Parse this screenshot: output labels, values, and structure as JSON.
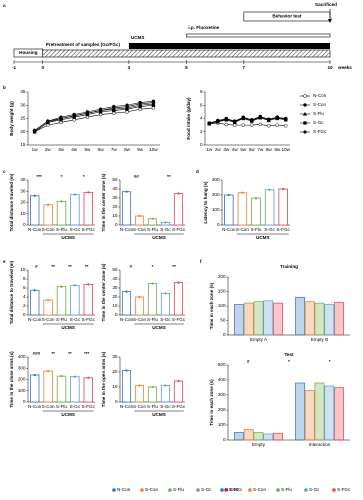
{
  "panel_labels": [
    "a",
    "b",
    "c",
    "d",
    "e",
    "f"
  ],
  "timeline": {
    "ticks": [
      -1,
      0,
      3,
      5,
      7,
      10
    ],
    "unit": "weeks",
    "phases": [
      {
        "label": "Housing",
        "start": -1,
        "end": 0,
        "style": "box"
      },
      {
        "label": "Pretreatment of samples (Gc/FGc)",
        "start": 0,
        "end": 10,
        "style": "hatch"
      },
      {
        "label": "UCMS",
        "start": 3,
        "end": 10,
        "style": "solid"
      },
      {
        "label": "i.p. Fluoxetine",
        "start": 5,
        "end": 10,
        "style": "line"
      },
      {
        "label": "Behavior test",
        "start": 7,
        "end": 10,
        "style": "box-label"
      }
    ],
    "endpoint": {
      "label": "Sacrificed",
      "at": 10
    }
  },
  "chart_data": [
    {
      "type": "line",
      "ylabel": "Body weight (g)",
      "categories": [
        "1w",
        "2w",
        "3w",
        "4w",
        "5w",
        "6w",
        "7w",
        "8w",
        "9w",
        "10w"
      ],
      "ylim": [
        15,
        35
      ],
      "yticks": [
        15,
        20,
        25,
        30,
        35
      ],
      "series": [
        {
          "name": "N-Con",
          "color": "#000000",
          "marker": "circle-open",
          "values": [
            20,
            22.5,
            23.5,
            24.5,
            25.5,
            26.5,
            27,
            27.5,
            28.5,
            29
          ]
        },
        {
          "name": "S-Con",
          "color": "#000000",
          "marker": "circle",
          "values": [
            20.5,
            24,
            25.5,
            26.5,
            27.5,
            28.5,
            29.5,
            30,
            31,
            31.5
          ]
        },
        {
          "name": "S-Flu",
          "color": "#000000",
          "marker": "triangle",
          "values": [
            20,
            23.5,
            25,
            26,
            27,
            28,
            28.5,
            29,
            30,
            30.5
          ]
        },
        {
          "name": "S-Gc",
          "color": "#000000",
          "marker": "square",
          "values": [
            20,
            23.5,
            24.5,
            25.5,
            26.5,
            27.5,
            28,
            28.5,
            29.5,
            30
          ]
        },
        {
          "name": "S-FGc",
          "color": "#000000",
          "marker": "diamond",
          "values": [
            20.5,
            24,
            25,
            26,
            27,
            28,
            29,
            29.5,
            30.5,
            31
          ]
        }
      ]
    },
    {
      "type": "line",
      "ylabel": "Food intake (g/day)",
      "categories": [
        "1w",
        "2w",
        "3w",
        "4w",
        "5w",
        "6w",
        "7w",
        "8w",
        "9w",
        "10w"
      ],
      "ylim": [
        0,
        8
      ],
      "yticks": [
        0,
        2,
        4,
        6,
        8
      ],
      "legend": "right",
      "series": [
        {
          "name": "N-Con",
          "color": "#000000",
          "marker": "circle-open",
          "values": [
            3.2,
            3.3,
            3.1,
            3.0,
            3.0,
            3.0,
            3.1,
            2.9,
            3.0,
            2.9
          ]
        },
        {
          "name": "S-Con",
          "color": "#000000",
          "marker": "circle",
          "values": [
            3.3,
            3.7,
            4.0,
            3.6,
            4.2,
            3.8,
            4.3,
            3.9,
            4.2,
            4.0
          ]
        },
        {
          "name": "S-Flu",
          "color": "#000000",
          "marker": "triangle",
          "values": [
            3.2,
            3.5,
            3.8,
            3.4,
            4.0,
            3.6,
            4.1,
            3.7,
            4.0,
            3.8
          ]
        },
        {
          "name": "S-Gc",
          "color": "#000000",
          "marker": "square",
          "values": [
            3.3,
            3.6,
            3.9,
            3.5,
            4.1,
            3.7,
            4.2,
            3.8,
            4.1,
            3.9
          ]
        },
        {
          "name": "S-FGc",
          "color": "#000000",
          "marker": "diamond",
          "values": [
            3.2,
            3.6,
            3.9,
            3.6,
            4.1,
            3.8,
            4.2,
            3.8,
            4.2,
            3.9
          ]
        }
      ]
    },
    {
      "type": "bar",
      "ylabel": "Total distance traveled (m)",
      "categories": [
        "N-Con",
        "S-Con",
        "S-Flu",
        "S-Gc",
        "S-FGc"
      ],
      "xlabel": "UCMS",
      "values": [
        26,
        18,
        21,
        27,
        29
      ],
      "colors": [
        "#2e75b6",
        "#ed7d31",
        "#70ad47",
        "#5b9bd5",
        "#e0474c"
      ],
      "ylim": [
        0,
        40
      ],
      "yticks": [
        0,
        10,
        20,
        30,
        40
      ],
      "annotations": [
        "***",
        "*",
        "*"
      ]
    },
    {
      "type": "bar",
      "ylabel": "Time in the center zone (s)",
      "categories": [
        "N-Con",
        "S-Con",
        "S-Flu",
        "S-Gc",
        "S-FGc"
      ],
      "xlabel": "UCMS",
      "values": [
        37,
        10,
        7,
        3,
        35
      ],
      "colors": [
        "#2e75b6",
        "#ed7d31",
        "#70ad47",
        "#5b9bd5",
        "#e0474c"
      ],
      "ylim": [
        0,
        50
      ],
      "yticks": [
        0,
        10,
        20,
        30,
        40,
        50
      ],
      "annotations": [
        "##",
        "**"
      ]
    },
    {
      "type": "bar",
      "ylabel": "Latency to hang (s)",
      "categories": [
        "N-Con",
        "S-Con",
        "S-Flu",
        "S-Gc",
        "S-FGc"
      ],
      "xlabel": "UCMS",
      "values": [
        200,
        215,
        180,
        235,
        240
      ],
      "colors": [
        "#2e75b6",
        "#ed7d31",
        "#70ad47",
        "#5b9bd5",
        "#e0474c"
      ],
      "ylim": [
        0,
        300
      ],
      "yticks": [
        0,
        100,
        200,
        300
      ]
    },
    {
      "type": "bar",
      "ylabel": "Total distance to traveled (m)",
      "categories": [
        "N-Con",
        "S-Con",
        "S-Flu",
        "S-Gc",
        "S-FGc"
      ],
      "xlabel": "UCMS",
      "values": [
        5.5,
        3.3,
        6.3,
        6.6,
        6.8
      ],
      "colors": [
        "#2e75b6",
        "#ed7d31",
        "#70ad47",
        "#5b9bd5",
        "#e0474c"
      ],
      "ylim": [
        0,
        10
      ],
      "yticks": [
        0,
        2,
        4,
        6,
        8,
        10
      ],
      "annotations": [
        "#",
        "**",
        "**",
        "**"
      ]
    },
    {
      "type": "bar",
      "ylabel": "Time in the center zone (s)",
      "categories": [
        "N-Con",
        "S-Con",
        "S-Flu",
        "S-Gc",
        "S-FGc"
      ],
      "xlabel": "UCMS",
      "values": [
        26,
        20,
        35,
        24,
        36
      ],
      "colors": [
        "#2e75b6",
        "#ed7d31",
        "#70ad47",
        "#5b9bd5",
        "#e0474c"
      ],
      "ylim": [
        0,
        50
      ],
      "yticks": [
        0,
        10,
        20,
        30,
        40,
        50
      ],
      "annotations": [
        "#",
        "*",
        "**"
      ]
    },
    {
      "type": "bar",
      "ylabel": "Time in the close arms (s)",
      "categories": [
        "N-Con",
        "S-Con",
        "S-Flu",
        "S-Gc",
        "S-FGc"
      ],
      "xlabel": "UCMS",
      "values": [
        240,
        275,
        230,
        225,
        215
      ],
      "colors": [
        "#2e75b6",
        "#ed7d31",
        "#70ad47",
        "#5b9bd5",
        "#e0474c"
      ],
      "ylim": [
        0,
        400
      ],
      "yticks": [
        0,
        100,
        200,
        300,
        400
      ],
      "annotations": [
        "###",
        "**",
        "**",
        "***"
      ]
    },
    {
      "type": "bar",
      "ylabel": "Time in the open arms (s)",
      "categories": [
        "N-Con",
        "S-Con",
        "S-Flu",
        "S-Gc",
        "S-FGc"
      ],
      "xlabel": "UCMS",
      "values": [
        21,
        11,
        10,
        11,
        14
      ],
      "colors": [
        "#2e75b6",
        "#ed7d31",
        "#70ad47",
        "#5b9bd5",
        "#e0474c"
      ],
      "ylim": [
        0,
        30
      ],
      "yticks": [
        0,
        10,
        20,
        30
      ],
      "legend": "bottom"
    },
    {
      "type": "grouped_bar",
      "title": "Training",
      "ylabel": "Time in each zone (s)",
      "categories": [
        "Empty A",
        "Empty B"
      ],
      "ylim": [
        0,
        200
      ],
      "yticks": [
        0,
        50,
        100,
        150,
        200
      ],
      "series": [
        {
          "name": "N-Con",
          "color": "#2e75b6",
          "values": [
            105,
            130
          ]
        },
        {
          "name": "S-Con",
          "color": "#ed7d31",
          "values": [
            110,
            115
          ]
        },
        {
          "name": "S-Flu",
          "color": "#70ad47",
          "values": [
            115,
            110
          ]
        },
        {
          "name": "S-Gc",
          "color": "#5b9bd5",
          "values": [
            118,
            105
          ]
        },
        {
          "name": "S-FGc",
          "color": "#e0474c",
          "values": [
            110,
            112
          ]
        }
      ]
    },
    {
      "type": "grouped_bar",
      "title": "Test",
      "ylabel": "Time in each zone (s)",
      "categories": [
        "Empty",
        "Interaction"
      ],
      "ylim": [
        0,
        500
      ],
      "yticks": [
        0,
        100,
        200,
        300,
        400,
        500
      ],
      "annotations": [
        "#",
        "*",
        "*"
      ],
      "legend": "bottom",
      "series": [
        {
          "name": "N-Con",
          "color": "#2e75b6",
          "values": [
            50,
            380
          ]
        },
        {
          "name": "S-Con",
          "color": "#ed7d31",
          "values": [
            70,
            330
          ]
        },
        {
          "name": "S-Flu",
          "color": "#70ad47",
          "values": [
            50,
            380
          ]
        },
        {
          "name": "S-Gc",
          "color": "#5b9bd5",
          "values": [
            40,
            360
          ]
        },
        {
          "name": "S-FGc",
          "color": "#e0474c",
          "values": [
            45,
            350
          ]
        }
      ]
    }
  ]
}
